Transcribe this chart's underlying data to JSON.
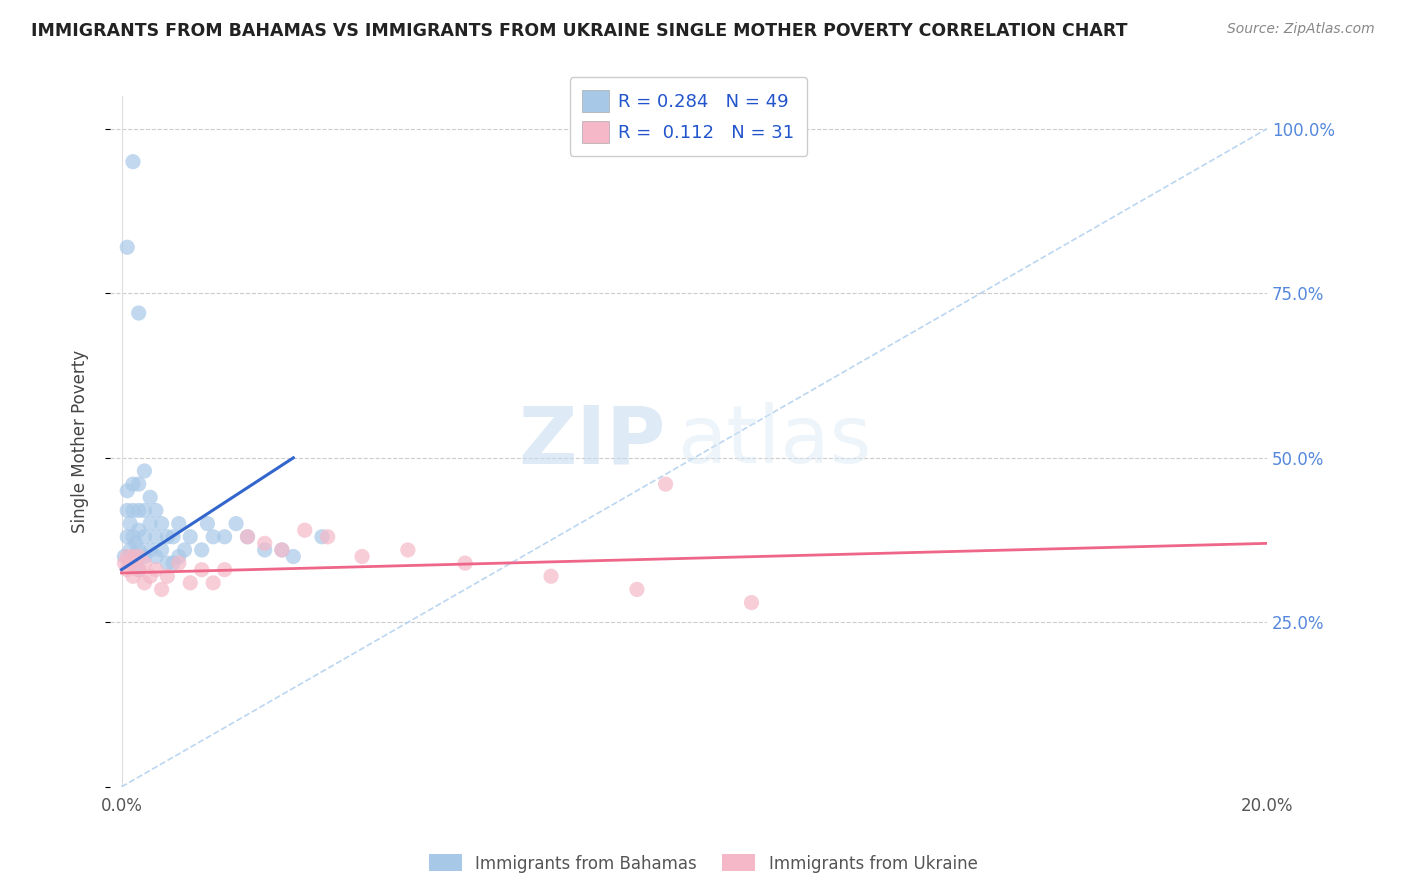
{
  "title": "IMMIGRANTS FROM BAHAMAS VS IMMIGRANTS FROM UKRAINE SINGLE MOTHER POVERTY CORRELATION CHART",
  "source": "Source: ZipAtlas.com",
  "ylabel": "Single Mother Poverty",
  "x_range": [
    0.0,
    0.2
  ],
  "y_range": [
    0.0,
    1.05
  ],
  "series1_color": "#a8c8e8",
  "series2_color": "#f4b8c8",
  "line1_color": "#3366cc",
  "line2_color": "#ee6688",
  "watermark_zip": "ZIP",
  "watermark_atlas": "atlas",
  "bahamas_x": [
    0.0005,
    0.001,
    0.001,
    0.001,
    0.0015,
    0.0015,
    0.002,
    0.002,
    0.002,
    0.002,
    0.0025,
    0.003,
    0.003,
    0.003,
    0.003,
    0.003,
    0.004,
    0.004,
    0.004,
    0.004,
    0.005,
    0.005,
    0.005,
    0.006,
    0.006,
    0.006,
    0.007,
    0.007,
    0.008,
    0.008,
    0.009,
    0.009,
    0.01,
    0.01,
    0.011,
    0.012,
    0.014,
    0.015,
    0.016,
    0.018,
    0.02,
    0.022,
    0.025,
    0.028,
    0.03,
    0.035,
    0.001,
    0.002,
    0.003
  ],
  "bahamas_y": [
    0.35,
    0.38,
    0.42,
    0.45,
    0.36,
    0.4,
    0.35,
    0.38,
    0.42,
    0.46,
    0.37,
    0.33,
    0.36,
    0.39,
    0.42,
    0.46,
    0.35,
    0.38,
    0.42,
    0.48,
    0.36,
    0.4,
    0.44,
    0.35,
    0.38,
    0.42,
    0.36,
    0.4,
    0.34,
    0.38,
    0.34,
    0.38,
    0.35,
    0.4,
    0.36,
    0.38,
    0.36,
    0.4,
    0.38,
    0.38,
    0.4,
    0.38,
    0.36,
    0.36,
    0.35,
    0.38,
    0.82,
    0.95,
    0.72
  ],
  "ukraine_x": [
    0.0005,
    0.001,
    0.001,
    0.0015,
    0.002,
    0.002,
    0.003,
    0.003,
    0.004,
    0.004,
    0.005,
    0.006,
    0.007,
    0.008,
    0.01,
    0.012,
    0.014,
    0.016,
    0.018,
    0.022,
    0.025,
    0.028,
    0.032,
    0.036,
    0.042,
    0.05,
    0.06,
    0.075,
    0.09,
    0.11,
    0.095
  ],
  "ukraine_y": [
    0.34,
    0.33,
    0.35,
    0.34,
    0.32,
    0.35,
    0.33,
    0.35,
    0.31,
    0.34,
    0.32,
    0.33,
    0.3,
    0.32,
    0.34,
    0.31,
    0.33,
    0.31,
    0.33,
    0.38,
    0.37,
    0.36,
    0.39,
    0.38,
    0.35,
    0.36,
    0.34,
    0.32,
    0.3,
    0.28,
    0.46
  ],
  "bah_line_x": [
    0.0,
    0.03
  ],
  "bah_line_y": [
    0.33,
    0.5
  ],
  "ukr_line_x": [
    0.0,
    0.2
  ],
  "ukr_line_y": [
    0.325,
    0.37
  ],
  "ref_line_x": [
    0.0,
    0.2
  ],
  "ref_line_y": [
    0.0,
    1.0
  ]
}
